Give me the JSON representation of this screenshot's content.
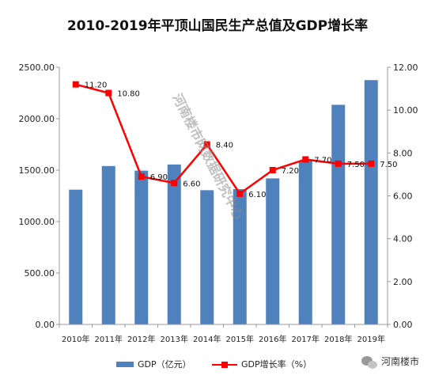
{
  "chart_data": {
    "type": "bar+line",
    "title": "2010-2019年平顶山国民生产总值及GDP增长率",
    "categories": [
      "2010年",
      "2011年",
      "2012年",
      "2013年",
      "2014年",
      "2015年",
      "2016年",
      "2017年",
      "2018年",
      "2019年"
    ],
    "series": [
      {
        "name": "GDP（亿元）",
        "type": "bar",
        "axis": "left",
        "color": "#4f81bd",
        "values": [
          1310,
          1540,
          1495,
          1555,
          1305,
          1315,
          1420,
          1590,
          2135,
          2375
        ]
      },
      {
        "name": "GDP增长率（%）",
        "type": "line",
        "axis": "right",
        "color": "#ff0000",
        "values": [
          11.2,
          10.8,
          6.9,
          6.6,
          8.4,
          6.1,
          7.2,
          7.7,
          7.5,
          7.5
        ],
        "labels": [
          "11.20",
          "10.80",
          "6.90",
          "6.60",
          "8.40",
          "6.10",
          "7.20",
          "7.70",
          "7.50",
          "7.50"
        ]
      }
    ],
    "left_axis": {
      "ylim": [
        0,
        2500
      ],
      "ticks": [
        "0.00",
        "500.00",
        "1000.00",
        "1500.00",
        "2000.00",
        "2500.00"
      ]
    },
    "right_axis": {
      "ylim": [
        0,
        12
      ],
      "ticks": [
        "0.00",
        "2.00",
        "4.00",
        "6.00",
        "8.00",
        "10.00",
        "12.00"
      ]
    },
    "grid": false,
    "legend_position": "bottom"
  },
  "watermark": "河南楼市网数据研究中心",
  "brand": {
    "icon": "wechat-icon",
    "text": "河南楼市"
  }
}
